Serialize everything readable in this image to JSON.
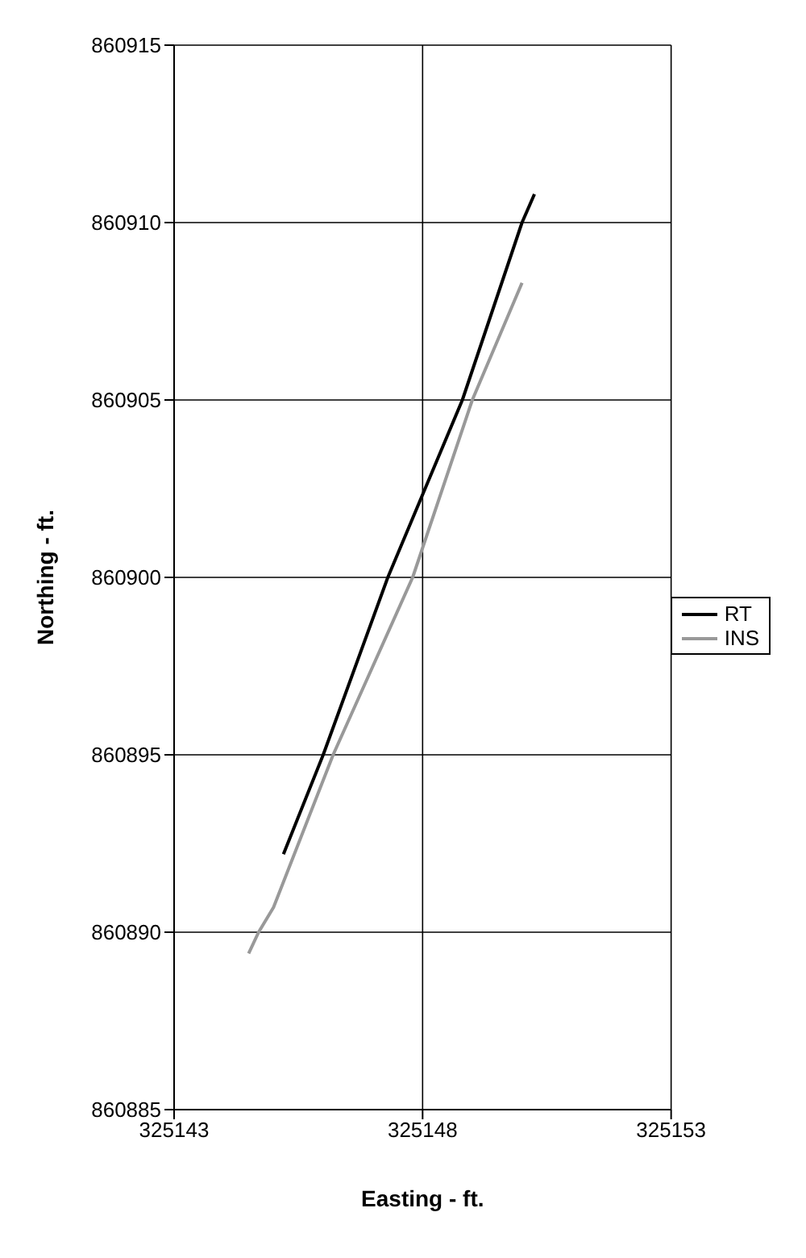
{
  "chart_data": {
    "type": "line",
    "xlabel": "Easting - ft.",
    "ylabel": "Northing - ft.",
    "xlim": [
      325143,
      325153
    ],
    "xticks": [
      325143,
      325148,
      325153
    ],
    "ylim": [
      860885,
      860915
    ],
    "yticks": [
      860885,
      860890,
      860895,
      860900,
      860905,
      860910,
      860915
    ],
    "grid": true,
    "legend": "right",
    "marker": "none",
    "series": [
      {
        "name": "RT",
        "color": "#000000",
        "x": [
          325145.2,
          325146.0,
          325147.3,
          325148.8,
          325150.0,
          325150.25
        ],
        "values": [
          860892.2,
          860895,
          860900,
          860905,
          860910,
          860910.8
        ]
      },
      {
        "name": "INS",
        "color": "#999999",
        "x": [
          325144.5,
          325144.7,
          325145.0,
          325146.2,
          325147.8,
          325149.0,
          325150.0
        ],
        "values": [
          860889.4,
          860890,
          860890.7,
          860895,
          860900,
          860905,
          860908.3
        ]
      }
    ]
  }
}
